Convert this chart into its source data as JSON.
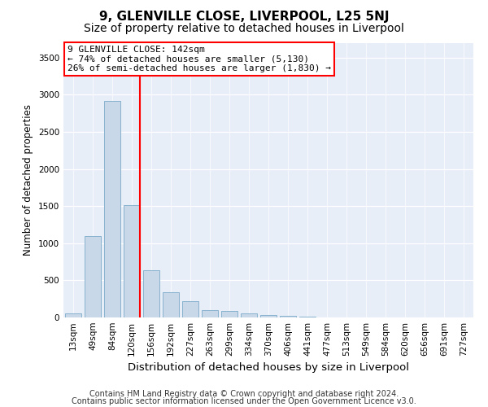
{
  "title1": "9, GLENVILLE CLOSE, LIVERPOOL, L25 5NJ",
  "title2": "Size of property relative to detached houses in Liverpool",
  "xlabel": "Distribution of detached houses by size in Liverpool",
  "ylabel": "Number of detached properties",
  "categories": [
    "13sqm",
    "49sqm",
    "84sqm",
    "120sqm",
    "156sqm",
    "192sqm",
    "227sqm",
    "263sqm",
    "299sqm",
    "334sqm",
    "370sqm",
    "406sqm",
    "441sqm",
    "477sqm",
    "513sqm",
    "549sqm",
    "584sqm",
    "620sqm",
    "656sqm",
    "691sqm",
    "727sqm"
  ],
  "values": [
    50,
    1100,
    2920,
    1510,
    640,
    345,
    215,
    100,
    90,
    55,
    35,
    20,
    10,
    5,
    5,
    3,
    2,
    2,
    1,
    0,
    0
  ],
  "bar_color": "#c8d8e8",
  "bar_edgecolor": "#7aaac8",
  "vline_color": "red",
  "vline_x_pos": 3.42,
  "annotation_text": "9 GLENVILLE CLOSE: 142sqm\n← 74% of detached houses are smaller (5,130)\n26% of semi-detached houses are larger (1,830) →",
  "annotation_box_facecolor": "white",
  "annotation_box_edgecolor": "red",
  "ylim": [
    0,
    3700
  ],
  "yticks": [
    0,
    500,
    1000,
    1500,
    2000,
    2500,
    3000,
    3500
  ],
  "grid_color": "white",
  "plot_facecolor": "#e8eef8",
  "fig_facecolor": "white",
  "title1_fontsize": 11,
  "title2_fontsize": 10,
  "xlabel_fontsize": 9.5,
  "ylabel_fontsize": 8.5,
  "tick_fontsize": 7.5,
  "annot_fontsize": 8,
  "footer_fontsize": 7,
  "footer1": "Contains HM Land Registry data © Crown copyright and database right 2024.",
  "footer2": "Contains public sector information licensed under the Open Government Licence v3.0."
}
